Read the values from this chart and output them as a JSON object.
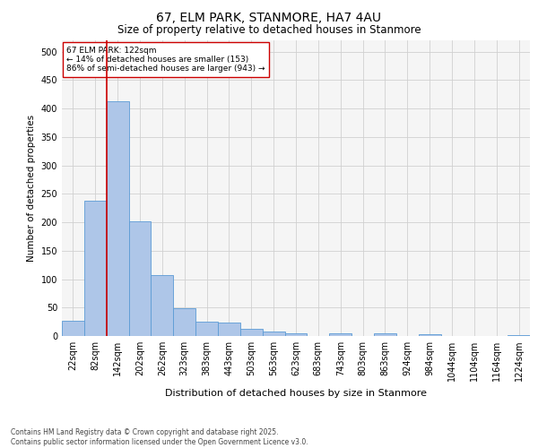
{
  "title_line1": "67, ELM PARK, STANMORE, HA7 4AU",
  "title_line2": "Size of property relative to detached houses in Stanmore",
  "xlabel": "Distribution of detached houses by size in Stanmore",
  "ylabel": "Number of detached properties",
  "bar_labels": [
    "22sqm",
    "82sqm",
    "142sqm",
    "202sqm",
    "262sqm",
    "323sqm",
    "383sqm",
    "443sqm",
    "503sqm",
    "563sqm",
    "623sqm",
    "683sqm",
    "743sqm",
    "803sqm",
    "863sqm",
    "924sqm",
    "984sqm",
    "1044sqm",
    "1104sqm",
    "1164sqm",
    "1224sqm"
  ],
  "bar_values": [
    27,
    238,
    413,
    201,
    107,
    49,
    26,
    24,
    12,
    8,
    4,
    0,
    4,
    0,
    5,
    0,
    3,
    0,
    0,
    0,
    1
  ],
  "bar_color": "#aec6e8",
  "bar_edge_color": "#5b9bd5",
  "red_line_bin": 2,
  "annotation_text": "67 ELM PARK: 122sqm\n← 14% of detached houses are smaller (153)\n86% of semi-detached houses are larger (943) →",
  "annotation_box_color": "#ffffff",
  "annotation_box_edge_color": "#cc0000",
  "footer_text": "Contains HM Land Registry data © Crown copyright and database right 2025.\nContains public sector information licensed under the Open Government Licence v3.0.",
  "ylim": [
    0,
    520
  ],
  "yticks": [
    0,
    50,
    100,
    150,
    200,
    250,
    300,
    350,
    400,
    450,
    500
  ],
  "grid_color": "#d0d0d0",
  "background_color": "#f5f5f5",
  "title_fontsize": 10,
  "subtitle_fontsize": 8.5,
  "ylabel_fontsize": 7.5,
  "xlabel_fontsize": 8,
  "tick_fontsize": 7,
  "annot_fontsize": 6.5,
  "footer_fontsize": 5.5
}
